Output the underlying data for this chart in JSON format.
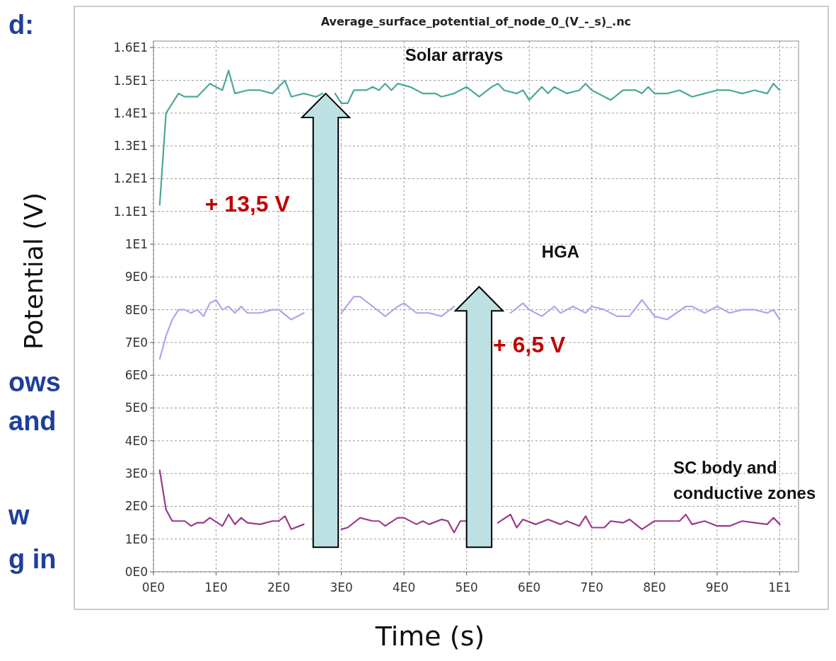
{
  "chart_data": {
    "type": "line",
    "title": "Average_surface_potential_of_node_0_(V_-_s)_.nc",
    "xlabel": "Time (s)",
    "ylabel": "Potential (V)",
    "xlim": [
      0,
      10.3
    ],
    "ylim": [
      0,
      16.2
    ],
    "xticks": [
      {
        "value": 0,
        "label": "0E0"
      },
      {
        "value": 1,
        "label": "1E0"
      },
      {
        "value": 2,
        "label": "2E0"
      },
      {
        "value": 3,
        "label": "3E0"
      },
      {
        "value": 4,
        "label": "4E0"
      },
      {
        "value": 5,
        "label": "5E0"
      },
      {
        "value": 6,
        "label": "6E0"
      },
      {
        "value": 7,
        "label": "7E0"
      },
      {
        "value": 8,
        "label": "8E0"
      },
      {
        "value": 9,
        "label": "9E0"
      },
      {
        "value": 10,
        "label": "1E1"
      }
    ],
    "yticks": [
      {
        "value": 0,
        "label": "0E0"
      },
      {
        "value": 1,
        "label": "1E0"
      },
      {
        "value": 2,
        "label": "2E0"
      },
      {
        "value": 3,
        "label": "3E0"
      },
      {
        "value": 4,
        "label": "4E0"
      },
      {
        "value": 5,
        "label": "5E0"
      },
      {
        "value": 6,
        "label": "6E0"
      },
      {
        "value": 7,
        "label": "7E0"
      },
      {
        "value": 8,
        "label": "8E0"
      },
      {
        "value": 9,
        "label": "9E0"
      },
      {
        "value": 10,
        "label": "1E1"
      },
      {
        "value": 11,
        "label": "1.1E1"
      },
      {
        "value": 12,
        "label": "1.2E1"
      },
      {
        "value": 13,
        "label": "1.3E1"
      },
      {
        "value": 14,
        "label": "1.4E1"
      },
      {
        "value": 15,
        "label": "1.5E1"
      },
      {
        "value": 16,
        "label": "1.6E1"
      }
    ],
    "grid": true,
    "line_style": "solid",
    "marker": "none",
    "legend": false,
    "series": [
      {
        "color": "#4aa89a",
        "x": [
          0.1,
          0.2,
          0.4,
          0.5,
          0.7,
          0.9,
          1.1,
          1.2,
          1.3,
          1.5,
          1.7,
          1.9,
          2.1,
          2.2,
          2.4,
          2.6,
          2.7,
          2.8,
          2.9,
          3.0,
          3.1,
          3.2,
          3.4,
          3.5,
          3.6,
          3.7,
          3.8,
          3.9,
          4.1,
          4.3,
          4.5,
          4.6,
          4.8,
          5.0,
          5.2,
          5.4,
          5.5,
          5.6,
          5.8,
          5.9,
          6.0,
          6.2,
          6.3,
          6.4,
          6.6,
          6.8,
          6.9,
          7.0,
          7.3,
          7.5,
          7.7,
          7.8,
          7.9,
          8.0,
          8.2,
          8.4,
          8.6,
          8.8,
          9.0,
          9.2,
          9.4,
          9.6,
          9.8,
          9.9,
          10.0
        ],
        "values": [
          11.2,
          14.0,
          14.6,
          14.5,
          14.5,
          14.9,
          14.7,
          15.3,
          14.6,
          14.7,
          14.7,
          14.6,
          15.0,
          14.5,
          14.6,
          14.5,
          14.6,
          null,
          14.6,
          14.3,
          14.3,
          14.7,
          14.7,
          14.8,
          14.7,
          14.9,
          14.7,
          14.9,
          14.8,
          14.6,
          14.6,
          14.5,
          14.6,
          14.8,
          14.5,
          14.8,
          14.9,
          14.7,
          14.6,
          14.7,
          14.4,
          14.8,
          14.6,
          14.8,
          14.6,
          14.7,
          14.9,
          14.7,
          14.4,
          14.7,
          14.7,
          14.6,
          14.8,
          14.6,
          14.6,
          14.7,
          14.5,
          14.6,
          14.7,
          14.7,
          14.6,
          14.7,
          14.6,
          14.9,
          14.7
        ]
      },
      {
        "color": "#a8a8ee",
        "x": [
          0.1,
          0.2,
          0.3,
          0.4,
          0.5,
          0.6,
          0.7,
          0.8,
          0.9,
          1.0,
          1.1,
          1.2,
          1.3,
          1.4,
          1.5,
          1.7,
          1.9,
          2.0,
          2.2,
          2.4,
          2.6,
          2.7,
          3.0,
          3.2,
          3.3,
          3.5,
          3.7,
          3.9,
          4.0,
          4.2,
          4.4,
          4.6,
          4.8,
          4.9,
          5.0,
          5.2,
          5.3,
          5.7,
          5.9,
          6.0,
          6.2,
          6.4,
          6.5,
          6.7,
          6.9,
          7.0,
          7.2,
          7.4,
          7.6,
          7.8,
          8.0,
          8.2,
          8.5,
          8.6,
          8.8,
          9.0,
          9.2,
          9.4,
          9.6,
          9.8,
          9.9,
          10.0
        ],
        "values": [
          6.5,
          7.2,
          7.7,
          8.0,
          8.0,
          7.9,
          8.0,
          7.8,
          8.2,
          8.3,
          8.0,
          8.1,
          7.9,
          8.1,
          7.9,
          7.9,
          8.0,
          8.0,
          7.7,
          7.9,
          null,
          null,
          7.9,
          8.4,
          8.4,
          8.1,
          7.8,
          8.1,
          8.2,
          7.9,
          7.9,
          7.8,
          8.1,
          null,
          null,
          null,
          null,
          7.9,
          8.2,
          8.0,
          7.8,
          8.1,
          7.9,
          8.1,
          7.9,
          8.1,
          8.0,
          7.8,
          7.8,
          8.3,
          7.8,
          7.7,
          8.1,
          8.1,
          7.9,
          8.1,
          7.9,
          8.0,
          8.0,
          7.9,
          8.0,
          7.7
        ]
      },
      {
        "color": "#9b3a8a",
        "x": [
          0.1,
          0.2,
          0.3,
          0.5,
          0.6,
          0.7,
          0.8,
          0.9,
          1.1,
          1.2,
          1.3,
          1.4,
          1.5,
          1.7,
          1.9,
          2.0,
          2.1,
          2.2,
          2.4,
          2.6,
          2.8,
          2.9,
          3.0,
          3.1,
          3.3,
          3.5,
          3.6,
          3.7,
          3.9,
          4.0,
          4.2,
          4.3,
          4.4,
          4.6,
          4.7,
          4.8,
          4.9,
          5.0,
          5.2,
          5.4,
          5.5,
          5.7,
          5.8,
          5.9,
          6.1,
          6.3,
          6.5,
          6.6,
          6.8,
          6.9,
          7.0,
          7.2,
          7.3,
          7.5,
          7.6,
          7.8,
          8.0,
          8.2,
          8.4,
          8.5,
          8.6,
          8.8,
          9.0,
          9.2,
          9.4,
          9.6,
          9.8,
          9.9,
          10.0
        ],
        "values": [
          3.1,
          1.9,
          1.55,
          1.55,
          1.4,
          1.5,
          1.5,
          1.65,
          1.4,
          1.75,
          1.45,
          1.65,
          1.5,
          1.45,
          1.55,
          1.55,
          1.7,
          1.3,
          1.45,
          null,
          null,
          null,
          1.3,
          1.35,
          1.65,
          1.55,
          1.55,
          1.4,
          1.65,
          1.65,
          1.45,
          1.55,
          1.45,
          1.6,
          1.55,
          1.2,
          1.55,
          1.55,
          null,
          null,
          1.5,
          1.75,
          1.35,
          1.6,
          1.45,
          1.6,
          1.45,
          1.55,
          1.4,
          1.7,
          1.35,
          1.35,
          1.55,
          1.5,
          1.6,
          1.3,
          1.55,
          1.55,
          1.55,
          1.75,
          1.45,
          1.55,
          1.4,
          1.4,
          1.55,
          1.5,
          1.45,
          1.65,
          1.45
        ]
      }
    ],
    "annotations": [
      "Solar arrays",
      "HGA",
      "SC body and\nconductive zones",
      "+ 13,5 V",
      "+ 6,5 V",
      "d:",
      "ows",
      "and",
      "w",
      "g in"
    ]
  }
}
